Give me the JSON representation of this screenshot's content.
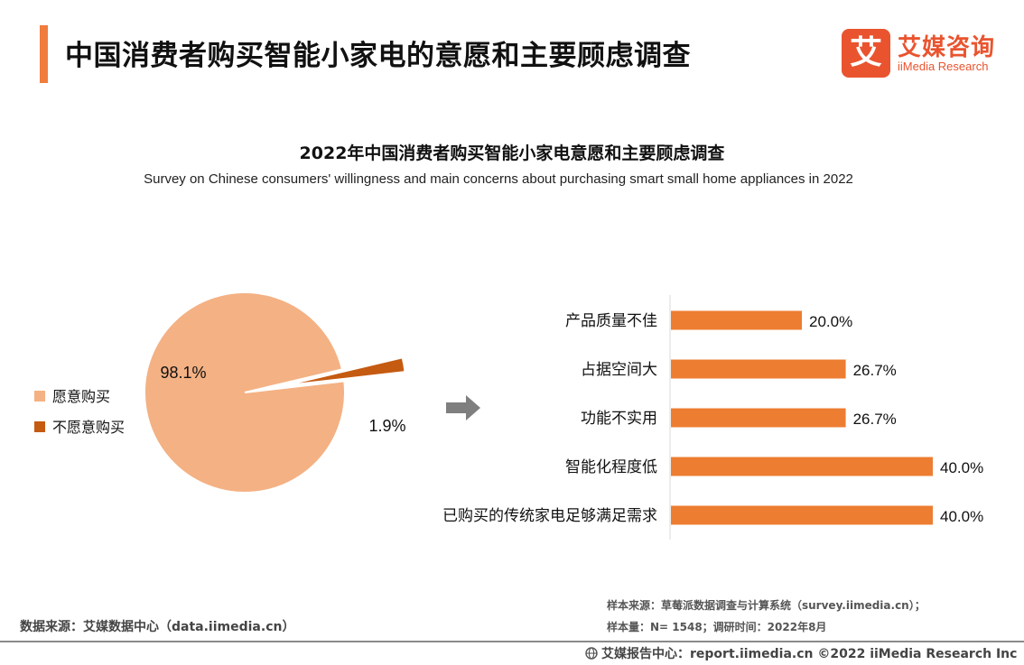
{
  "header": {
    "title": "中国消费者购买智能小家电的意愿和主要顾虑调查"
  },
  "logo": {
    "mark": "艾",
    "cn": "艾媒咨询",
    "en": "iiMedia Research"
  },
  "colors": {
    "accent": "#f07c3e",
    "pie_main": "#f4b183",
    "pie_minor": "#c55a11",
    "bar": "#ed7d31",
    "arrow": "#7f7f7f"
  },
  "chart_data": [
    {
      "type": "pie",
      "title": "2022年中国消费者购买智能小家电意愿和主要顾虑调查",
      "subtitle": "Survey on Chinese consumers' willingness and main concerns about purchasing smart small home appliances in 2022",
      "slices": [
        {
          "label": "愿意购买",
          "value": 98.1,
          "display": "98.1%"
        },
        {
          "label": "不愿意购买",
          "value": 1.9,
          "display": "1.9%"
        }
      ],
      "legend_placement": "left"
    },
    {
      "type": "bar",
      "orientation": "horizontal",
      "categories": [
        "产品质量不佳",
        "占据空间大",
        "功能不实用",
        "智能化程度低",
        "已购买的传统家电足够满足需求"
      ],
      "values": [
        20.0,
        26.7,
        26.7,
        40.0,
        40.0
      ],
      "labels": [
        "20.0%",
        "26.7%",
        "26.7%",
        "40.0%",
        "40.0%"
      ],
      "xlim": [
        0,
        40
      ]
    }
  ],
  "footer": {
    "data_source": "数据来源：艾媒数据中心（data.iimedia.cn）",
    "sample_source": "样本来源：草莓派数据调查与计算系统（survey.iimedia.cn）；",
    "sample_info": "样本量：N= 1548；调研时间：2022年8月",
    "bottom": "艾媒报告中心：report.iimedia.cn    ©2022  iiMedia Research  Inc"
  }
}
